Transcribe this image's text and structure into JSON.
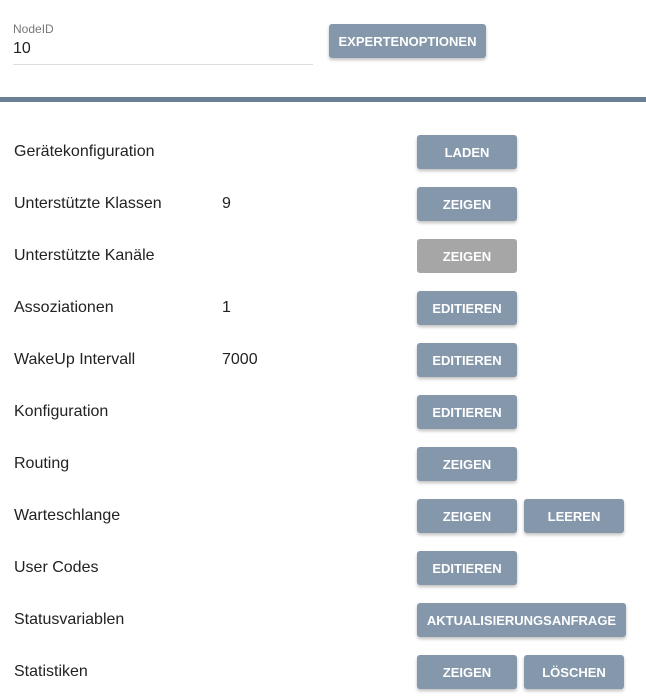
{
  "node": {
    "label": "NodeID",
    "value": "10"
  },
  "expert_button": "EXPERTENOPTIONEN",
  "colors": {
    "button": "#8497ab",
    "button_disabled": "#a6a6a6",
    "divider": "#6b8096"
  },
  "rows": [
    {
      "name": "Gerätekonfiguration",
      "value": "",
      "buttons": [
        {
          "label": "LADEN",
          "disabled": false
        }
      ]
    },
    {
      "name": "Unterstützte Klassen",
      "value": "9",
      "buttons": [
        {
          "label": "ZEIGEN",
          "disabled": false
        }
      ]
    },
    {
      "name": "Unterstützte Kanäle",
      "value": "",
      "buttons": [
        {
          "label": "ZEIGEN",
          "disabled": true
        }
      ]
    },
    {
      "name": "Assoziationen",
      "value": "1",
      "buttons": [
        {
          "label": "EDITIEREN",
          "disabled": false
        }
      ]
    },
    {
      "name": "WakeUp Intervall",
      "value": "7000",
      "buttons": [
        {
          "label": "EDITIEREN",
          "disabled": false
        }
      ]
    },
    {
      "name": "Konfiguration",
      "value": "",
      "buttons": [
        {
          "label": "EDITIEREN",
          "disabled": false
        }
      ]
    },
    {
      "name": "Routing",
      "value": "",
      "buttons": [
        {
          "label": "ZEIGEN",
          "disabled": false
        }
      ]
    },
    {
      "name": "Warteschlange",
      "value": "",
      "buttons": [
        {
          "label": "ZEIGEN",
          "disabled": false
        },
        {
          "label": "LEEREN",
          "disabled": false
        }
      ]
    },
    {
      "name": "User Codes",
      "value": "",
      "buttons": [
        {
          "label": "EDITIEREN",
          "disabled": false
        }
      ]
    },
    {
      "name": "Statusvariablen",
      "value": "",
      "buttons": [
        {
          "label": "AKTUALISIERUNGSANFRAGE",
          "disabled": false,
          "wide": true
        }
      ]
    },
    {
      "name": "Statistiken",
      "value": "",
      "buttons": [
        {
          "label": "ZEIGEN",
          "disabled": false
        },
        {
          "label": "LÖSCHEN",
          "disabled": false
        }
      ]
    }
  ]
}
